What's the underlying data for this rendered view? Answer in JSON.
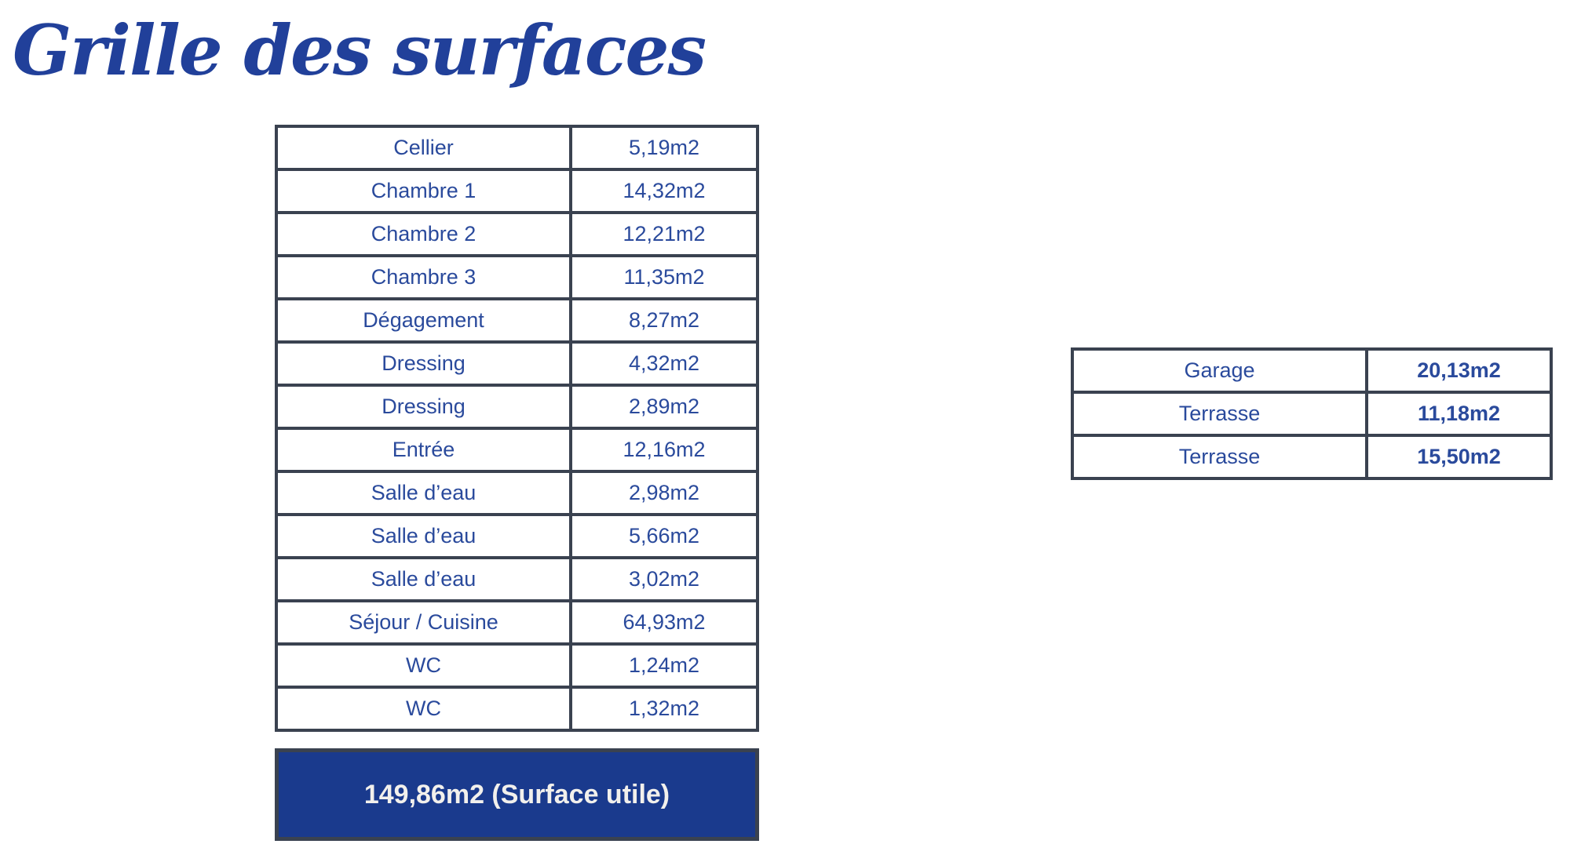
{
  "title": {
    "text": "Grille des surfaces"
  },
  "surfaces_table": {
    "rows": [
      {
        "label": "Cellier",
        "value": "5,19m2"
      },
      {
        "label": "Chambre 1",
        "value": "14,32m2"
      },
      {
        "label": "Chambre 2",
        "value": "12,21m2"
      },
      {
        "label": "Chambre 3",
        "value": "11,35m2"
      },
      {
        "label": "Dégagement",
        "value": "8,27m2"
      },
      {
        "label": "Dressing",
        "value": "4,32m2"
      },
      {
        "label": "Dressing",
        "value": "2,89m2"
      },
      {
        "label": "Entrée",
        "value": "12,16m2"
      },
      {
        "label": "Salle d’eau",
        "value": "2,98m2"
      },
      {
        "label": "Salle d’eau",
        "value": "5,66m2"
      },
      {
        "label": "Salle d’eau",
        "value": "3,02m2"
      },
      {
        "label": "Séjour / Cuisine",
        "value": "64,93m2"
      },
      {
        "label": "WC",
        "value": "1,24m2"
      },
      {
        "label": "WC",
        "value": "1,32m2"
      }
    ]
  },
  "annex_table": {
    "rows": [
      {
        "label": "Garage",
        "value": "20,13m2"
      },
      {
        "label": "Terrasse",
        "value": "11,18m2"
      },
      {
        "label": "Terrasse",
        "value": "15,50m2"
      }
    ]
  },
  "total_banner": {
    "text": "149,86m2 (Surface utile)"
  },
  "colors": {
    "title_blue": "#21409a",
    "cell_text_blue": "#2a4a9c",
    "border_dark": "#3a4250",
    "banner_background": "#1a3a8d",
    "banner_text": "#f2f0ec",
    "page_background": "#ffffff"
  }
}
